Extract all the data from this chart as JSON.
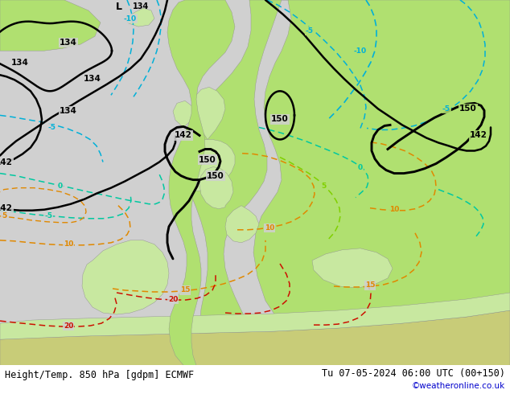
{
  "title_left": "Height/Temp. 850 hPa [gdpm] ECMWF",
  "title_right": "Tu 07-05-2024 06:00 UTC (00+150)",
  "copyright": "©weatheronline.co.uk",
  "fig_width": 6.34,
  "fig_height": 4.9,
  "dpi": 100,
  "cyan": "#00b0d8",
  "teal": "#00c8a0",
  "lime": "#80d000",
  "orange_t": "#e08800",
  "red_t": "#cc1000",
  "black": "#000000",
  "white": "#ffffff",
  "copyright_color": "#0000cc",
  "land_bright": "#b0e070",
  "land_mid": "#a8d868",
  "land_pale": "#c8e8a0",
  "sea_gray": "#d0d0d0",
  "gray_rock": "#b0b0b0",
  "title_fontsize": 8.5,
  "copyright_fontsize": 7.5
}
